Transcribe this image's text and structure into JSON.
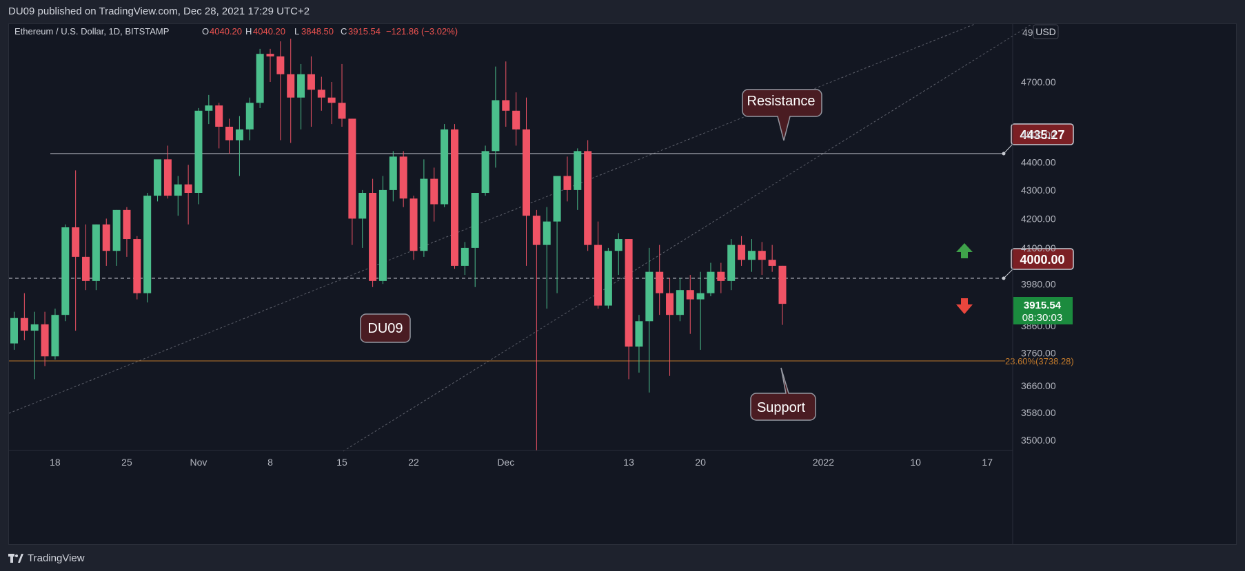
{
  "header": {
    "published_text": "DU09 published on TradingView.com, Dec 28, 2021 17:29 UTC+2"
  },
  "legend": {
    "symbol": "Ethereum / U.S. Dollar, 1D, BITSTAMP",
    "o_label": "O",
    "o_value": "4040.20",
    "h_label": "H",
    "h_value": "4040.20",
    "l_label": "L",
    "l_value": "3848.50",
    "c_label": "C",
    "c_value": "3915.54",
    "change": "−121.86 (−3.02%)"
  },
  "axis": {
    "currency": "USD",
    "top_partial_label": "49",
    "price_ticks": [
      "4700.00",
      "4500.00",
      "4400.00",
      "4300.00",
      "4200.00",
      "4100.00",
      "3980.00",
      "3760.00",
      "3660.00",
      "3580.00",
      "3500.00"
    ],
    "date_ticks": [
      "18",
      "25",
      "Nov",
      "8",
      "15",
      "22",
      "Dec",
      "13",
      "20",
      "2022",
      "10",
      "17"
    ],
    "last_price": "3915.54",
    "countdown": "08:30:03",
    "hidden_tick": "3860.00"
  },
  "annotations": {
    "resistance_label": "Resistance",
    "support_label": "Support",
    "watermark_label": "DU09",
    "level_4435": "4435.27",
    "level_4000": "4000.00",
    "fib_label": "23.60%(3738.28)"
  },
  "footer": {
    "brand": "TradingView"
  },
  "colors": {
    "up": "#26a69a",
    "up_body": "#4bbf8c",
    "down": "#ef5350",
    "down_body": "#f05365",
    "background": "#131722",
    "fib": "#c27a2c",
    "callout": "#4a1c22",
    "level_box": "#7b1f24"
  },
  "chart_data": {
    "type": "candlestick",
    "title": "Ethereum / U.S. Dollar, 1D, BITSTAMP",
    "y_scale": "log",
    "x_range": [
      "2021-10-14",
      "2022-01-20"
    ],
    "horizontal_levels": [
      4435.27,
      4000.0,
      3738.28
    ],
    "candles": [
      {
        "date": "2021-10-14",
        "open": 3790,
        "high": 3890,
        "low": 3770,
        "close": 3870
      },
      {
        "date": "2021-10-15",
        "open": 3870,
        "high": 3950,
        "low": 3800,
        "close": 3830
      },
      {
        "date": "2021-10-16",
        "open": 3830,
        "high": 3890,
        "low": 3680,
        "close": 3850
      },
      {
        "date": "2021-10-17",
        "open": 3850,
        "high": 3890,
        "low": 3720,
        "close": 3750
      },
      {
        "date": "2021-10-18",
        "open": 3750,
        "high": 3900,
        "low": 3740,
        "close": 3880
      },
      {
        "date": "2021-10-19",
        "open": 3880,
        "high": 4180,
        "low": 3860,
        "close": 4170
      },
      {
        "date": "2021-10-20",
        "open": 4170,
        "high": 4370,
        "low": 3830,
        "close": 4070
      },
      {
        "date": "2021-10-21",
        "open": 4070,
        "high": 4180,
        "low": 3960,
        "close": 3990
      },
      {
        "date": "2021-10-22",
        "open": 3990,
        "high": 4180,
        "low": 3960,
        "close": 4180
      },
      {
        "date": "2021-10-23",
        "open": 4180,
        "high": 4200,
        "low": 4040,
        "close": 4090
      },
      {
        "date": "2021-10-24",
        "open": 4090,
        "high": 4230,
        "low": 4040,
        "close": 4230
      },
      {
        "date": "2021-10-25",
        "open": 4230,
        "high": 4240,
        "low": 4070,
        "close": 4130
      },
      {
        "date": "2021-10-26",
        "open": 4130,
        "high": 4140,
        "low": 3930,
        "close": 3950
      },
      {
        "date": "2021-10-27",
        "open": 3950,
        "high": 4290,
        "low": 3920,
        "close": 4280
      },
      {
        "date": "2021-10-28",
        "open": 4280,
        "high": 4400,
        "low": 4260,
        "close": 4410
      },
      {
        "date": "2021-10-29",
        "open": 4410,
        "high": 4460,
        "low": 4270,
        "close": 4280
      },
      {
        "date": "2021-10-30",
        "open": 4280,
        "high": 4350,
        "low": 4210,
        "close": 4320
      },
      {
        "date": "2021-10-31",
        "open": 4320,
        "high": 4390,
        "low": 4180,
        "close": 4290
      },
      {
        "date": "2021-11-01",
        "open": 4290,
        "high": 4600,
        "low": 4250,
        "close": 4590
      },
      {
        "date": "2021-11-02",
        "open": 4590,
        "high": 4650,
        "low": 4540,
        "close": 4610
      },
      {
        "date": "2021-11-03",
        "open": 4610,
        "high": 4620,
        "low": 4450,
        "close": 4530
      },
      {
        "date": "2021-11-04",
        "open": 4530,
        "high": 4560,
        "low": 4430,
        "close": 4480
      },
      {
        "date": "2021-11-05",
        "open": 4480,
        "high": 4570,
        "low": 4350,
        "close": 4520
      },
      {
        "date": "2021-11-06",
        "open": 4520,
        "high": 4640,
        "low": 4480,
        "close": 4620
      },
      {
        "date": "2021-11-07",
        "open": 4620,
        "high": 4830,
        "low": 4600,
        "close": 4810
      },
      {
        "date": "2021-11-08",
        "open": 4810,
        "high": 4830,
        "low": 4700,
        "close": 4800
      },
      {
        "date": "2021-11-09",
        "open": 4800,
        "high": 4860,
        "low": 4480,
        "close": 4730
      },
      {
        "date": "2021-11-10",
        "open": 4730,
        "high": 4870,
        "low": 4470,
        "close": 4640
      },
      {
        "date": "2021-11-11",
        "open": 4640,
        "high": 4770,
        "low": 4520,
        "close": 4730
      },
      {
        "date": "2021-11-12",
        "open": 4730,
        "high": 4800,
        "low": 4530,
        "close": 4670
      },
      {
        "date": "2021-11-13",
        "open": 4670,
        "high": 4720,
        "low": 4590,
        "close": 4640
      },
      {
        "date": "2021-11-14",
        "open": 4640,
        "high": 4700,
        "low": 4540,
        "close": 4620
      },
      {
        "date": "2021-11-15",
        "open": 4620,
        "high": 4770,
        "low": 4530,
        "close": 4560
      },
      {
        "date": "2021-11-16",
        "open": 4560,
        "high": 4560,
        "low": 4110,
        "close": 4200
      },
      {
        "date": "2021-11-17",
        "open": 4200,
        "high": 4300,
        "low": 4100,
        "close": 4290
      },
      {
        "date": "2021-11-18",
        "open": 4290,
        "high": 4340,
        "low": 3970,
        "close": 3990
      },
      {
        "date": "2021-11-19",
        "open": 3990,
        "high": 4350,
        "low": 3980,
        "close": 4300
      },
      {
        "date": "2021-11-20",
        "open": 4300,
        "high": 4440,
        "low": 4260,
        "close": 4420
      },
      {
        "date": "2021-11-21",
        "open": 4420,
        "high": 4440,
        "low": 4240,
        "close": 4270
      },
      {
        "date": "2021-11-22",
        "open": 4270,
        "high": 4280,
        "low": 4060,
        "close": 4090
      },
      {
        "date": "2021-11-23",
        "open": 4090,
        "high": 4410,
        "low": 4070,
        "close": 4340
      },
      {
        "date": "2021-11-24",
        "open": 4340,
        "high": 4380,
        "low": 4190,
        "close": 4250
      },
      {
        "date": "2021-11-25",
        "open": 4250,
        "high": 4540,
        "low": 4240,
        "close": 4520
      },
      {
        "date": "2021-11-26",
        "open": 4520,
        "high": 4540,
        "low": 4030,
        "close": 4040
      },
      {
        "date": "2021-11-27",
        "open": 4040,
        "high": 4120,
        "low": 4010,
        "close": 4100
      },
      {
        "date": "2021-11-28",
        "open": 4100,
        "high": 4290,
        "low": 3970,
        "close": 4290
      },
      {
        "date": "2021-11-29",
        "open": 4290,
        "high": 4460,
        "low": 4280,
        "close": 4440
      },
      {
        "date": "2021-11-30",
        "open": 4440,
        "high": 4760,
        "low": 4380,
        "close": 4630
      },
      {
        "date": "2021-12-01",
        "open": 4630,
        "high": 4780,
        "low": 4530,
        "close": 4590
      },
      {
        "date": "2021-12-02",
        "open": 4590,
        "high": 4660,
        "low": 4460,
        "close": 4520
      },
      {
        "date": "2021-12-03",
        "open": 4520,
        "high": 4640,
        "low": 4040,
        "close": 4210
      },
      {
        "date": "2021-12-04",
        "open": 4210,
        "high": 4230,
        "low": 3470,
        "close": 4110
      },
      {
        "date": "2021-12-05",
        "open": 4110,
        "high": 4240,
        "low": 3900,
        "close": 4190
      },
      {
        "date": "2021-12-06",
        "open": 4190,
        "high": 4350,
        "low": 3950,
        "close": 4350
      },
      {
        "date": "2021-12-07",
        "open": 4350,
        "high": 4420,
        "low": 4260,
        "close": 4300
      },
      {
        "date": "2021-12-08",
        "open": 4300,
        "high": 4450,
        "low": 4230,
        "close": 4440
      },
      {
        "date": "2021-12-09",
        "open": 4440,
        "high": 4480,
        "low": 4090,
        "close": 4110
      },
      {
        "date": "2021-12-10",
        "open": 4110,
        "high": 4190,
        "low": 3900,
        "close": 3910
      },
      {
        "date": "2021-12-11",
        "open": 3910,
        "high": 4100,
        "low": 3900,
        "close": 4090
      },
      {
        "date": "2021-12-12",
        "open": 4090,
        "high": 4150,
        "low": 4010,
        "close": 4130
      },
      {
        "date": "2021-12-13",
        "open": 4130,
        "high": 4130,
        "low": 3680,
        "close": 3780
      },
      {
        "date": "2021-12-14",
        "open": 3780,
        "high": 3880,
        "low": 3700,
        "close": 3860
      },
      {
        "date": "2021-12-15",
        "open": 3860,
        "high": 4100,
        "low": 3640,
        "close": 4020
      },
      {
        "date": "2021-12-16",
        "open": 4020,
        "high": 4110,
        "low": 3880,
        "close": 3950
      },
      {
        "date": "2021-12-17",
        "open": 3950,
        "high": 4000,
        "low": 3690,
        "close": 3880
      },
      {
        "date": "2021-12-18",
        "open": 3880,
        "high": 4000,
        "low": 3860,
        "close": 3960
      },
      {
        "date": "2021-12-19",
        "open": 3960,
        "high": 4010,
        "low": 3820,
        "close": 3930
      },
      {
        "date": "2021-12-20",
        "open": 3930,
        "high": 4020,
        "low": 3770,
        "close": 3950
      },
      {
        "date": "2021-12-21",
        "open": 3950,
        "high": 4050,
        "low": 3940,
        "close": 4020
      },
      {
        "date": "2021-12-22",
        "open": 4020,
        "high": 4050,
        "low": 3950,
        "close": 3990
      },
      {
        "date": "2021-12-23",
        "open": 3990,
        "high": 4130,
        "low": 3960,
        "close": 4110
      },
      {
        "date": "2021-12-24",
        "open": 4110,
        "high": 4140,
        "low": 4040,
        "close": 4060
      },
      {
        "date": "2021-12-25",
        "open": 4060,
        "high": 4130,
        "low": 4020,
        "close": 4090
      },
      {
        "date": "2021-12-26",
        "open": 4090,
        "high": 4120,
        "low": 4010,
        "close": 4060
      },
      {
        "date": "2021-12-27",
        "open": 4060,
        "high": 4110,
        "low": 4020,
        "close": 4040
      },
      {
        "date": "2021-12-28",
        "open": 4040.2,
        "high": 4040.2,
        "low": 3848.5,
        "close": 3915.54
      }
    ]
  }
}
